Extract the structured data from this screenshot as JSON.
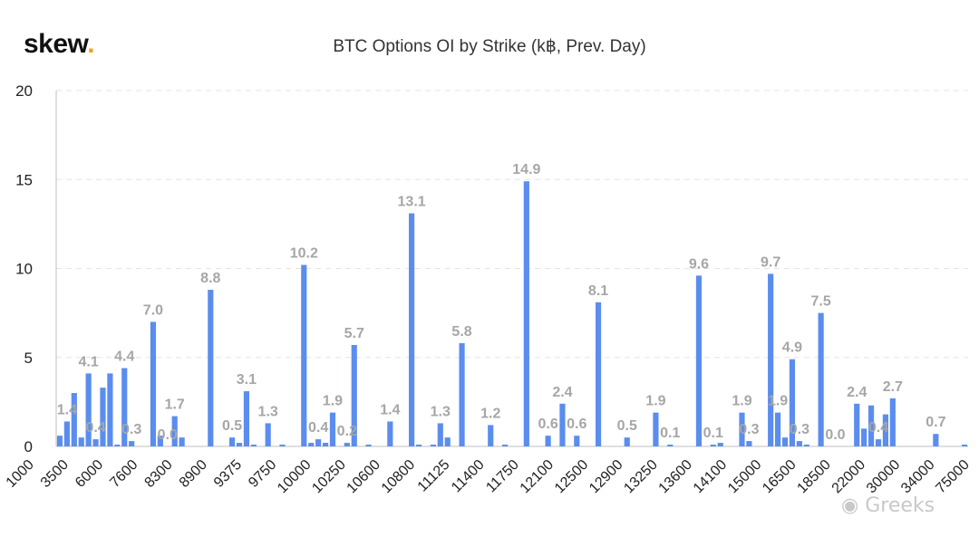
{
  "brand": {
    "name": "skew",
    "dot": ".",
    "accent": "#e6a817"
  },
  "watermark": "Greeks",
  "chart_data": {
    "type": "bar",
    "title": "BTC Options OI by Strike (k฿, Prev. Day)",
    "xlabel": "",
    "ylabel": "",
    "ylim": [
      0,
      20
    ],
    "yticks": [
      0,
      5,
      10,
      15,
      20
    ],
    "grid": true,
    "color": "#5b8def",
    "x_tick_labels": [
      "1000",
      "3500",
      "6000",
      "7600",
      "8300",
      "8900",
      "9375",
      "9750",
      "10000",
      "10250",
      "10600",
      "10800",
      "11125",
      "11400",
      "11750",
      "12100",
      "12500",
      "12900",
      "13250",
      "13600",
      "14100",
      "15000",
      "16500",
      "18500",
      "22000",
      "30000",
      "34000",
      "75000"
    ],
    "values": [
      0.6,
      1.4,
      3.0,
      0.5,
      4.1,
      0.4,
      3.3,
      4.1,
      0.1,
      4.4,
      0.3,
      0.0,
      0.0,
      7.0,
      0.6,
      0.0,
      1.7,
      0.5,
      0.0,
      0.0,
      0.0,
      8.8,
      0.0,
      0.0,
      0.5,
      0.2,
      3.1,
      0.1,
      0.0,
      1.3,
      0.0,
      0.1,
      0.0,
      0.0,
      10.2,
      0.2,
      0.4,
      0.2,
      1.9,
      0.0,
      0.2,
      5.7,
      0.0,
      0.1,
      0.0,
      0.0,
      1.4,
      0.0,
      0.0,
      13.1,
      0.1,
      0.0,
      0.1,
      1.3,
      0.5,
      0.0,
      5.8,
      0.0,
      0.0,
      0.0,
      1.2,
      0.0,
      0.1,
      0.0,
      0.0,
      14.9,
      0.0,
      0.0,
      0.6,
      0.0,
      2.4,
      0.0,
      0.6,
      0.0,
      0.0,
      8.1,
      0.0,
      0.0,
      0.0,
      0.5,
      0.0,
      0.0,
      0.0,
      1.9,
      0.0,
      0.1,
      0.0,
      0.0,
      0.0,
      9.6,
      0.0,
      0.1,
      0.2,
      0.0,
      0.0,
      1.9,
      0.3,
      0.0,
      0.0,
      9.7,
      1.9,
      0.5,
      4.9,
      0.3,
      0.1,
      0.0,
      7.5,
      0.0,
      0.0,
      0.0,
      0.0,
      2.4,
      1.0,
      2.3,
      0.4,
      1.8,
      2.7,
      0.0,
      0.0,
      0.0,
      0.0,
      0.0,
      0.7,
      0.0,
      0.0,
      0.0,
      0.1
    ],
    "data_labels": [
      {
        "index": 1,
        "text": "1.4"
      },
      {
        "index": 4,
        "text": "4.1"
      },
      {
        "index": 5,
        "text": "0.4"
      },
      {
        "index": 9,
        "text": "4.4"
      },
      {
        "index": 10,
        "text": "0.3"
      },
      {
        "index": 13,
        "text": "7.0"
      },
      {
        "index": 15,
        "text": "0.0"
      },
      {
        "index": 16,
        "text": "1.7"
      },
      {
        "index": 21,
        "text": "8.8"
      },
      {
        "index": 24,
        "text": "0.5"
      },
      {
        "index": 26,
        "text": "3.1"
      },
      {
        "index": 29,
        "text": "1.3"
      },
      {
        "index": 34,
        "text": "10.2"
      },
      {
        "index": 36,
        "text": "0.4"
      },
      {
        "index": 38,
        "text": "1.9"
      },
      {
        "index": 40,
        "text": "0.2"
      },
      {
        "index": 41,
        "text": "5.7"
      },
      {
        "index": 46,
        "text": "1.4"
      },
      {
        "index": 49,
        "text": "13.1"
      },
      {
        "index": 53,
        "text": "1.3"
      },
      {
        "index": 56,
        "text": "5.8"
      },
      {
        "index": 60,
        "text": "1.2"
      },
      {
        "index": 65,
        "text": "14.9"
      },
      {
        "index": 68,
        "text": "0.6"
      },
      {
        "index": 70,
        "text": "2.4"
      },
      {
        "index": 72,
        "text": "0.6"
      },
      {
        "index": 75,
        "text": "8.1"
      },
      {
        "index": 79,
        "text": "0.5"
      },
      {
        "index": 83,
        "text": "1.9"
      },
      {
        "index": 85,
        "text": "0.1"
      },
      {
        "index": 89,
        "text": "9.6"
      },
      {
        "index": 91,
        "text": "0.1"
      },
      {
        "index": 95,
        "text": "1.9"
      },
      {
        "index": 96,
        "text": "0.3"
      },
      {
        "index": 99,
        "text": "9.7"
      },
      {
        "index": 100,
        "text": "1.9"
      },
      {
        "index": 102,
        "text": "4.9"
      },
      {
        "index": 103,
        "text": "0.3"
      },
      {
        "index": 106,
        "text": "7.5"
      },
      {
        "index": 108,
        "text": "0.0"
      },
      {
        "index": 111,
        "text": "2.4"
      },
      {
        "index": 114,
        "text": "0.4"
      },
      {
        "index": 116,
        "text": "2.7"
      },
      {
        "index": 122,
        "text": "0.7"
      }
    ]
  }
}
